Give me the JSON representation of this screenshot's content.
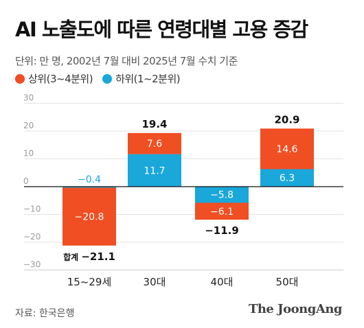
{
  "title": "AI 노출도에 따른 연령대별 고용 증감",
  "subtitle": "단위: 만 명, 2002년 7월 대비 2025년 7월 수치 기준",
  "legend": [
    {
      "label": "상위(3~4분위)",
      "color": "#f04e23"
    },
    {
      "label": "하위(1~2분위)",
      "color": "#1aa7d9"
    }
  ],
  "source": "자료: 한국은행",
  "logo": "The JoongAng",
  "chart_data": {
    "type": "bar",
    "stacked": true,
    "categories": [
      "15~29세",
      "30대",
      "40대",
      "50대"
    ],
    "series": [
      {
        "name": "상위(3~4분위)",
        "values": [
          -20.8,
          7.6,
          -6.1,
          14.6
        ],
        "color": "#f04e23"
      },
      {
        "name": "하위(1~2분위)",
        "values": [
          -0.4,
          11.7,
          -5.8,
          6.3
        ],
        "color": "#1aa7d9"
      }
    ],
    "totals": [
      -21.1,
      19.4,
      -11.9,
      20.9
    ],
    "total_prefix": "합계",
    "y_ticks": [
      30,
      20,
      10,
      0,
      -10,
      -20,
      -30
    ],
    "y_tick_labels": [
      "30",
      "20",
      "10",
      "0",
      "−10",
      "−20",
      "−30"
    ],
    "ylim": [
      -30,
      30
    ],
    "grid": true
  }
}
